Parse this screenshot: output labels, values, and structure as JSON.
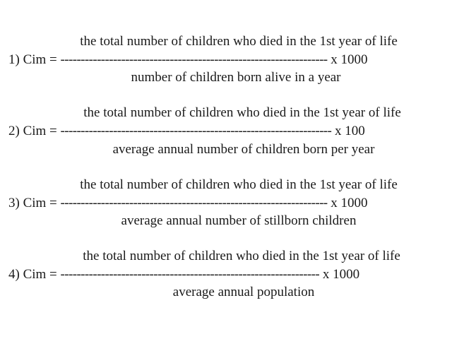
{
  "formulas": [
    {
      "index": "1) Cim =",
      "numerator": "the total number of children who died in the 1st year of life",
      "divider": "------------------------------------------------------------------",
      "multiplier": "x 1000",
      "denominator": "number of children born alive in a year"
    },
    {
      "index": "2) Cim =",
      "numerator": "the total number of children who died in the 1st year of life",
      "divider": "-------------------------------------------------------------------",
      "multiplier": "x 100",
      "denominator": "average annual number of children born per year"
    },
    {
      "index": "3) Cim =",
      "numerator": "the total number of children who died in the 1st year of life",
      "divider": "------------------------------------------------------------------",
      "multiplier": "x 1000",
      "denominator": "average annual number of stillborn children"
    },
    {
      "index": "4) Cim =",
      "numerator": "the total number of children who died in the 1st year of life",
      "divider": "----------------------------------------------------------------",
      "multiplier": "x 1000",
      "denominator": "average annual population"
    }
  ]
}
